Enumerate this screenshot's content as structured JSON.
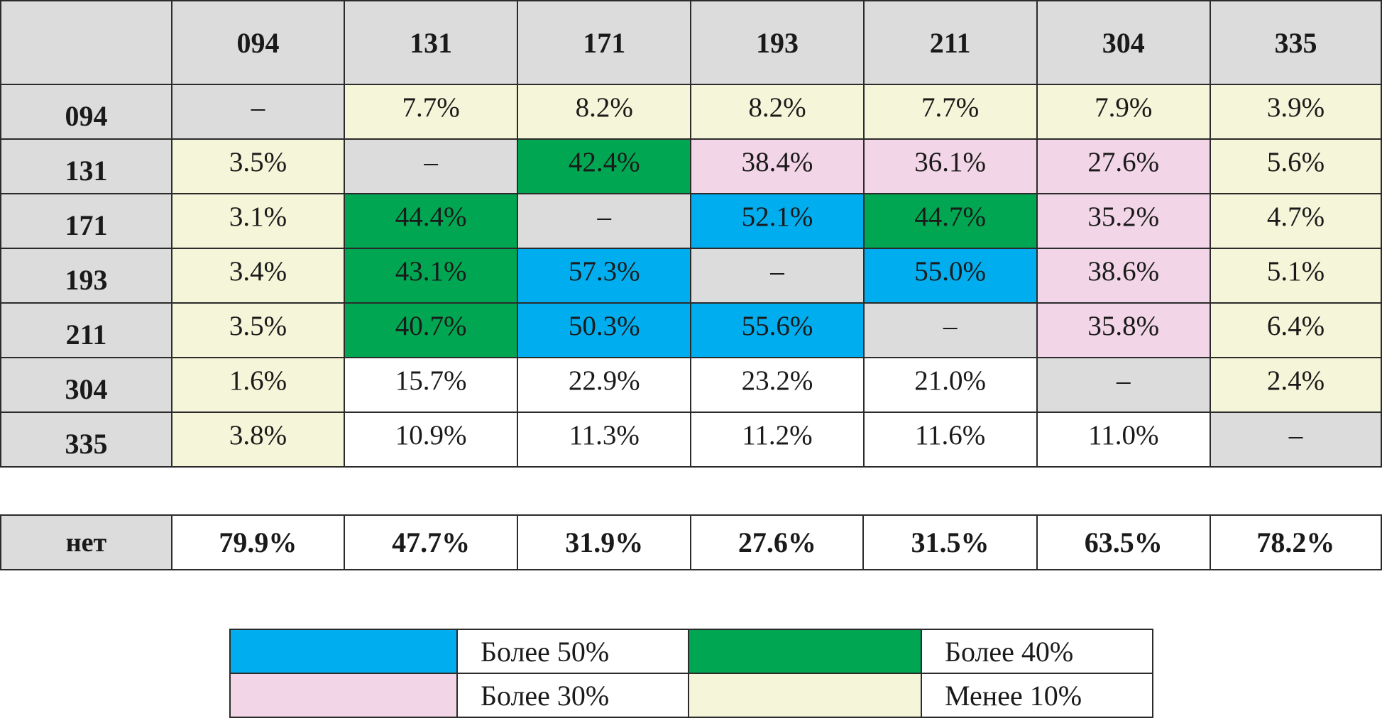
{
  "chart_data": {
    "type": "table",
    "columns": [
      "094",
      "131",
      "171",
      "193",
      "211",
      "304",
      "335"
    ],
    "rows": [
      {
        "label": "094",
        "cells": [
          {
            "value": "–",
            "category": "diagonal"
          },
          {
            "value": "7.7%",
            "category": "under10"
          },
          {
            "value": "8.2%",
            "category": "under10"
          },
          {
            "value": "8.2%",
            "category": "under10"
          },
          {
            "value": "7.7%",
            "category": "under10"
          },
          {
            "value": "7.9%",
            "category": "under10"
          },
          {
            "value": "3.9%",
            "category": "under10"
          }
        ]
      },
      {
        "label": "131",
        "cells": [
          {
            "value": "3.5%",
            "category": "under10"
          },
          {
            "value": "–",
            "category": "diagonal"
          },
          {
            "value": "42.4%",
            "category": "over40"
          },
          {
            "value": "38.4%",
            "category": "over30"
          },
          {
            "value": "36.1%",
            "category": "over30"
          },
          {
            "value": "27.6%",
            "category": "over30"
          },
          {
            "value": "5.6%",
            "category": "under10"
          }
        ]
      },
      {
        "label": "171",
        "cells": [
          {
            "value": "3.1%",
            "category": "under10"
          },
          {
            "value": "44.4%",
            "category": "over40"
          },
          {
            "value": "–",
            "category": "diagonal"
          },
          {
            "value": "52.1%",
            "category": "over50"
          },
          {
            "value": "44.7%",
            "category": "over40"
          },
          {
            "value": "35.2%",
            "category": "over30"
          },
          {
            "value": "4.7%",
            "category": "under10"
          }
        ]
      },
      {
        "label": "193",
        "cells": [
          {
            "value": "3.4%",
            "category": "under10"
          },
          {
            "value": "43.1%",
            "category": "over40"
          },
          {
            "value": "57.3%",
            "category": "over50"
          },
          {
            "value": "–",
            "category": "diagonal"
          },
          {
            "value": "55.0%",
            "category": "over50"
          },
          {
            "value": "38.6%",
            "category": "over30"
          },
          {
            "value": "5.1%",
            "category": "under10"
          }
        ]
      },
      {
        "label": "211",
        "cells": [
          {
            "value": "3.5%",
            "category": "under10"
          },
          {
            "value": "40.7%",
            "category": "over40"
          },
          {
            "value": "50.3%",
            "category": "over50"
          },
          {
            "value": "55.6%",
            "category": "over50"
          },
          {
            "value": "–",
            "category": "diagonal"
          },
          {
            "value": "35.8%",
            "category": "over30"
          },
          {
            "value": "6.4%",
            "category": "under10"
          }
        ]
      },
      {
        "label": "304",
        "cells": [
          {
            "value": "1.6%",
            "category": "under10"
          },
          {
            "value": "15.7%",
            "category": "none"
          },
          {
            "value": "22.9%",
            "category": "none"
          },
          {
            "value": "23.2%",
            "category": "none"
          },
          {
            "value": "21.0%",
            "category": "none"
          },
          {
            "value": "–",
            "category": "diagonal"
          },
          {
            "value": "2.4%",
            "category": "under10"
          }
        ]
      },
      {
        "label": "335",
        "cells": [
          {
            "value": "3.8%",
            "category": "under10"
          },
          {
            "value": "10.9%",
            "category": "none"
          },
          {
            "value": "11.3%",
            "category": "none"
          },
          {
            "value": "11.2%",
            "category": "none"
          },
          {
            "value": "11.6%",
            "category": "none"
          },
          {
            "value": "11.0%",
            "category": "none"
          },
          {
            "value": "–",
            "category": "diagonal"
          }
        ]
      }
    ],
    "none_row": {
      "label": "нет",
      "values": [
        "79.9%",
        "47.7%",
        "31.9%",
        "27.6%",
        "31.5%",
        "63.5%",
        "78.2%"
      ]
    },
    "legend": [
      {
        "label": "Более 50%",
        "category": "over50"
      },
      {
        "label": "Более 40%",
        "category": "over40"
      },
      {
        "label": "Более 30%",
        "category": "over30"
      },
      {
        "label": "Менее 10%",
        "category": "under10"
      }
    ],
    "colors": {
      "over50": "#00aeef",
      "over40": "#00a651",
      "over30": "#f2d5e6",
      "under10": "#f5f5d9",
      "diagonal": "#dcdcdc",
      "none": "#ffffff",
      "header": "#dcdcdc"
    }
  }
}
